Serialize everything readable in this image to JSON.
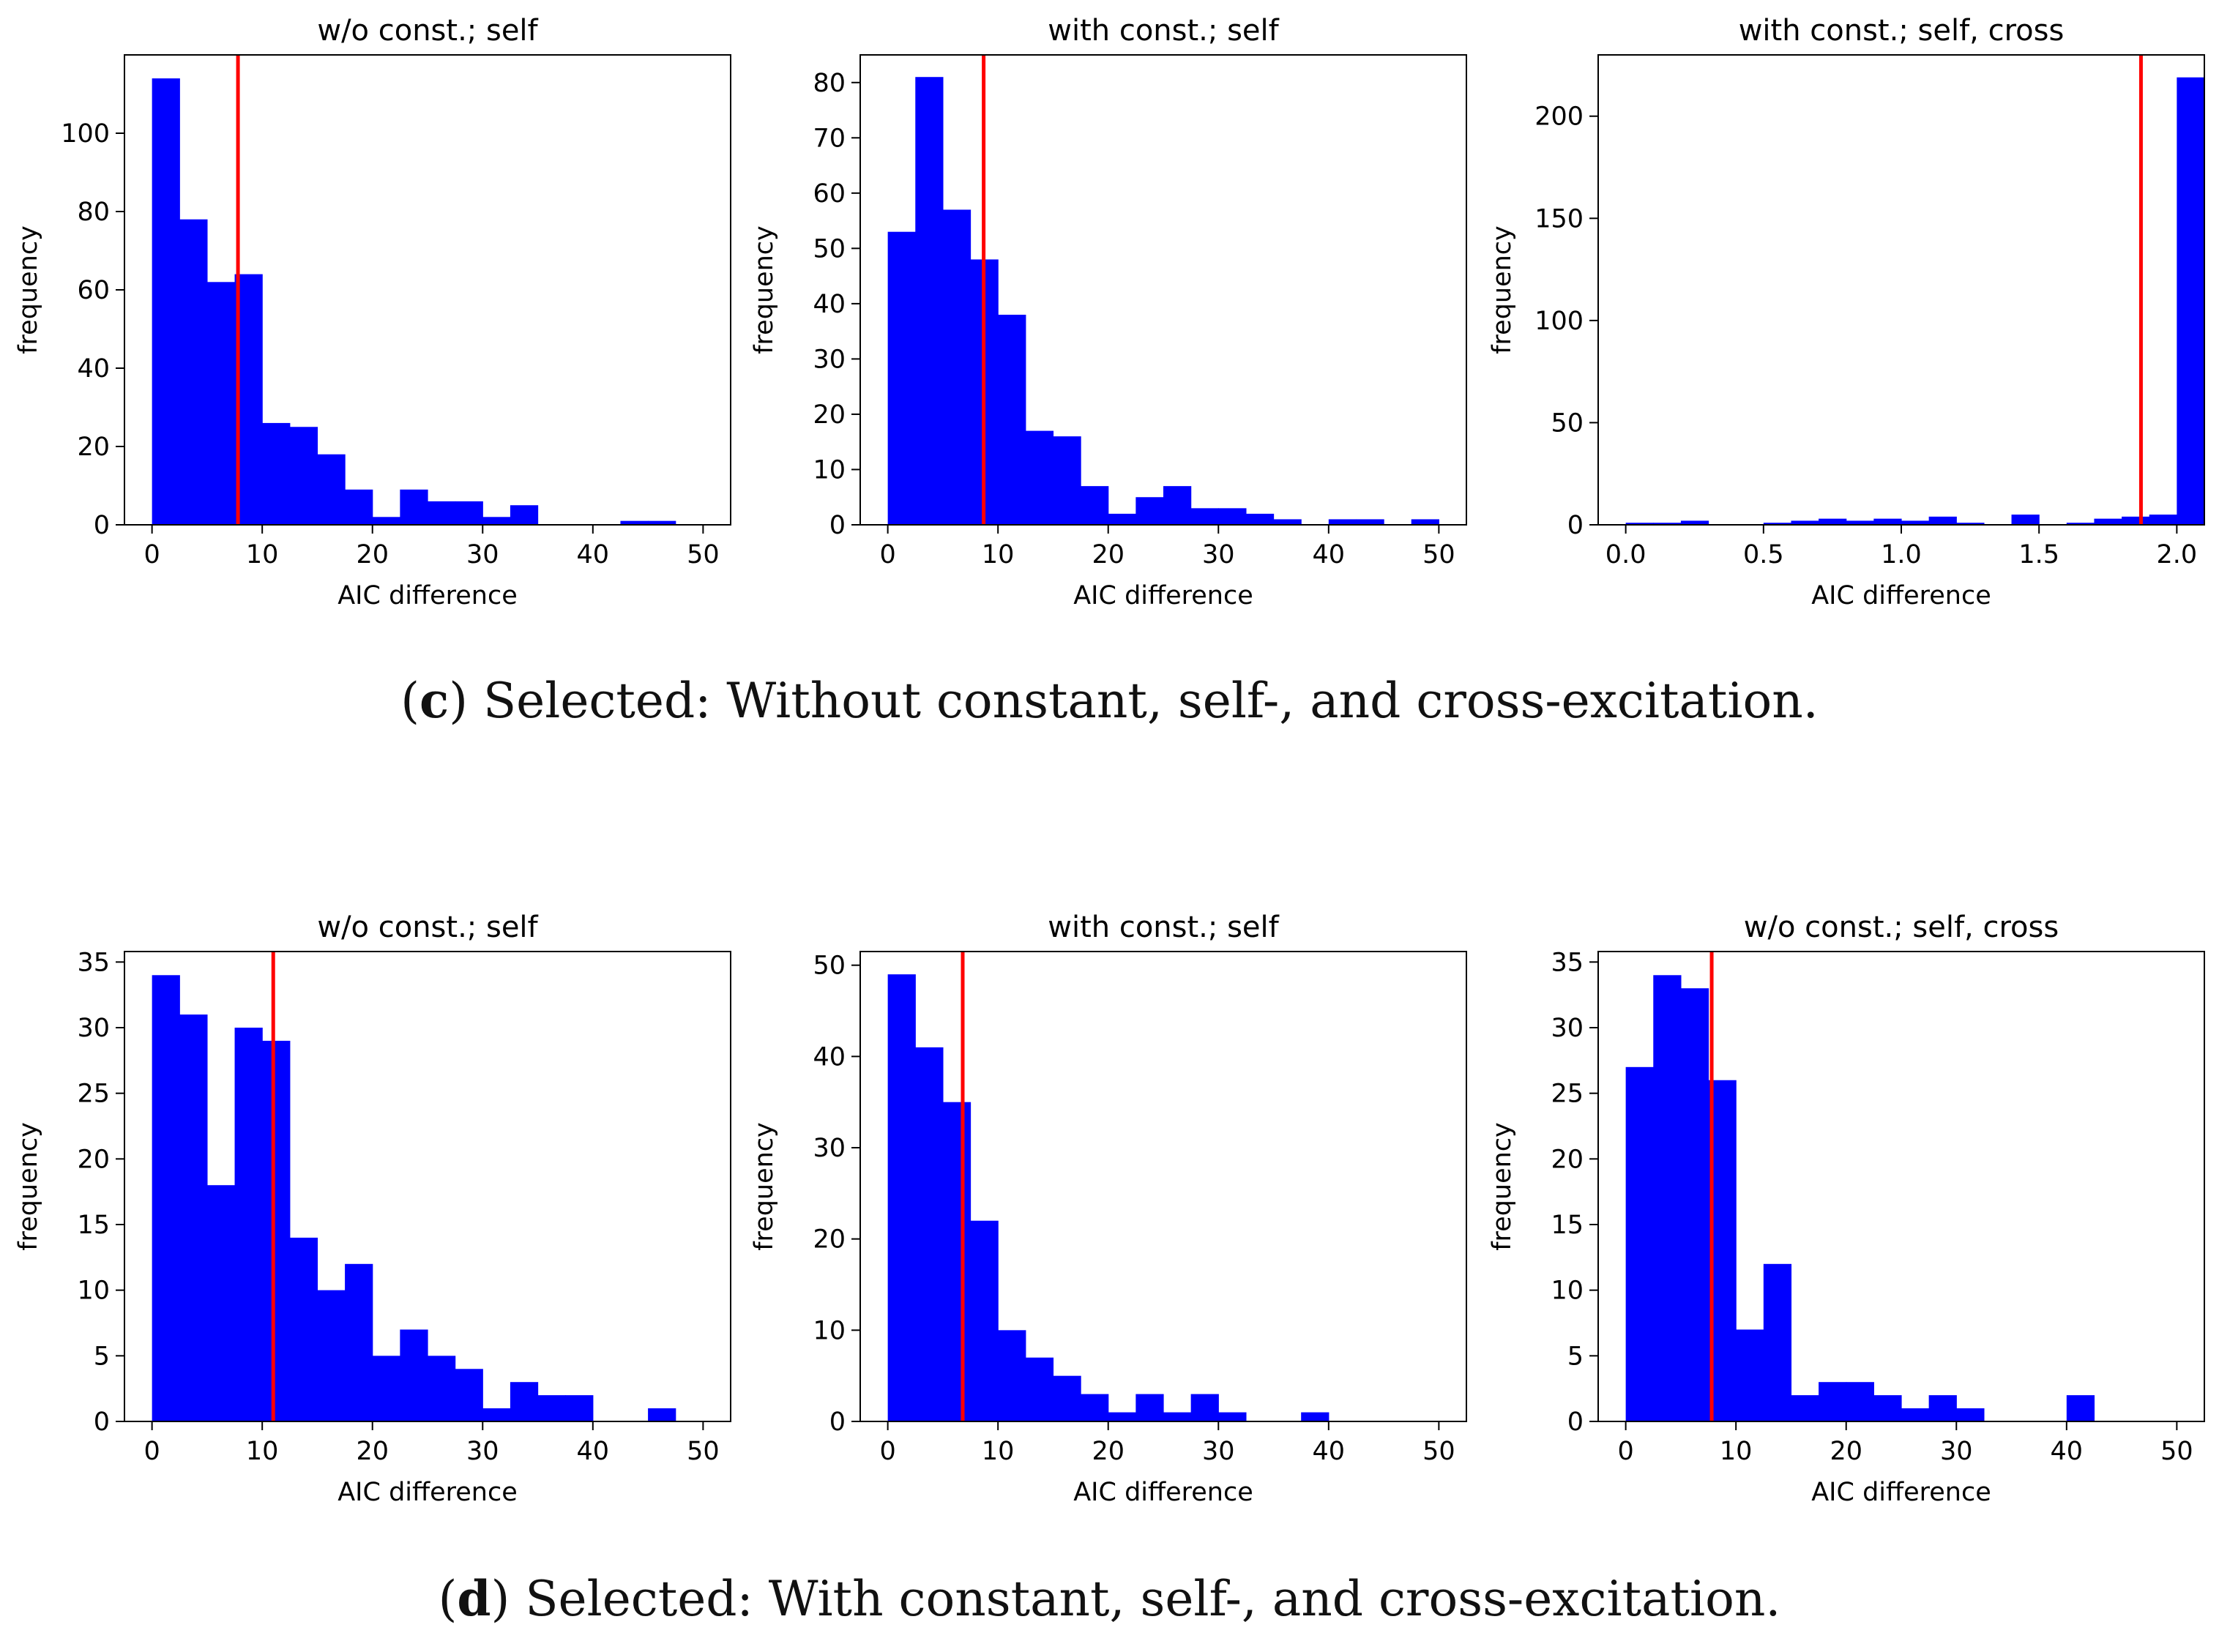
{
  "captions": [
    {
      "letter": "c",
      "text": "Selected: Without constant, self-, and cross-excitation."
    },
    {
      "letter": "d",
      "text": "Selected: With constant, self-, and cross-excitation."
    }
  ],
  "colors": {
    "bar": "#0000ff",
    "line": "#ff0000",
    "axis": "#000000"
  },
  "chart_data": [
    {
      "type": "bar",
      "title": "w/o const.; self",
      "xlabel": "AIC difference",
      "ylabel": "frequency",
      "xlim": [
        -2.5,
        52.5
      ],
      "ylim": [
        0,
        120
      ],
      "xticks": [
        0,
        10,
        20,
        30,
        40,
        50
      ],
      "yticks": [
        0,
        20,
        40,
        60,
        80,
        100
      ],
      "bin_start": 0,
      "bin_width": 2.5,
      "values": [
        114,
        78,
        62,
        64,
        26,
        25,
        18,
        9,
        2,
        9,
        6,
        6,
        2,
        5,
        0,
        0,
        0,
        1,
        1,
        0
      ],
      "red_line_x": 7.8
    },
    {
      "type": "bar",
      "title": "with const.; self",
      "xlabel": "AIC difference",
      "ylabel": "frequency",
      "xlim": [
        -2.5,
        52.5
      ],
      "ylim": [
        0,
        85
      ],
      "xticks": [
        0,
        10,
        20,
        30,
        40,
        50
      ],
      "yticks": [
        0,
        10,
        20,
        30,
        40,
        50,
        60,
        70,
        80
      ],
      "bin_start": 0,
      "bin_width": 2.5,
      "values": [
        53,
        81,
        57,
        48,
        38,
        17,
        16,
        7,
        2,
        5,
        7,
        3,
        3,
        2,
        1,
        0,
        1,
        1,
        0,
        1
      ],
      "red_line_x": 8.7
    },
    {
      "type": "bar",
      "title": "with const.; self, cross",
      "xlabel": "AIC difference",
      "ylabel": "frequency",
      "xlim": [
        -0.1,
        2.1
      ],
      "ylim": [
        0,
        230
      ],
      "xticks": [
        0.0,
        0.5,
        1.0,
        1.5,
        2.0
      ],
      "yticks": [
        0,
        50,
        100,
        150,
        200
      ],
      "xtick_decimals": 1,
      "bin_start": 0,
      "bin_width": 0.1,
      "values": [
        1,
        1,
        2,
        0,
        0,
        1,
        2,
        3,
        2,
        3,
        2,
        4,
        1,
        0,
        5,
        0,
        1,
        3,
        4,
        5,
        219
      ],
      "red_line_x": 1.87
    },
    {
      "type": "bar",
      "title": "w/o const.; self",
      "xlabel": "AIC difference",
      "ylabel": "frequency",
      "xlim": [
        -2.5,
        52.5
      ],
      "ylim": [
        0,
        35.8
      ],
      "xticks": [
        0,
        10,
        20,
        30,
        40,
        50
      ],
      "yticks": [
        0,
        5,
        10,
        15,
        20,
        25,
        30,
        35
      ],
      "bin_start": 0,
      "bin_width": 2.5,
      "values": [
        34,
        31,
        18,
        30,
        29,
        14,
        10,
        12,
        5,
        7,
        5,
        4,
        1,
        3,
        2,
        2,
        0,
        0,
        1,
        0
      ],
      "red_line_x": 11
    },
    {
      "type": "bar",
      "title": "with const.; self",
      "xlabel": "AIC difference",
      "ylabel": "frequency",
      "xlim": [
        -2.5,
        52.5
      ],
      "ylim": [
        0,
        51.5
      ],
      "xticks": [
        0,
        10,
        20,
        30,
        40,
        50
      ],
      "yticks": [
        0,
        10,
        20,
        30,
        40,
        50
      ],
      "bin_start": 0,
      "bin_width": 2.5,
      "values": [
        49,
        41,
        35,
        22,
        10,
        7,
        5,
        3,
        1,
        3,
        1,
        3,
        1,
        0,
        0,
        1,
        0,
        0,
        0,
        0
      ],
      "red_line_x": 6.8
    },
    {
      "type": "bar",
      "title": "w/o const.; self, cross",
      "xlabel": "AIC difference",
      "ylabel": "frequency",
      "xlim": [
        -2.5,
        52.5
      ],
      "ylim": [
        0,
        35.8
      ],
      "xticks": [
        0,
        10,
        20,
        30,
        40,
        50
      ],
      "yticks": [
        0,
        5,
        10,
        15,
        20,
        25,
        30,
        35
      ],
      "bin_start": 0,
      "bin_width": 2.5,
      "values": [
        27,
        34,
        33,
        26,
        7,
        12,
        2,
        3,
        3,
        2,
        1,
        2,
        1,
        0,
        0,
        0,
        2,
        0,
        0,
        0
      ],
      "red_line_x": 7.8
    }
  ]
}
